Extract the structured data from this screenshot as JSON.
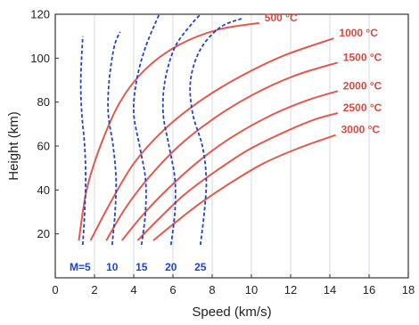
{
  "chart_data": {
    "type": "line",
    "xlabel": "Speed (km/s)",
    "ylabel": "Height (km)",
    "xlim": [
      0,
      18
    ],
    "ylim": [
      0,
      120
    ],
    "xticks": [
      "0",
      "2",
      "4",
      "6",
      "8",
      "10",
      "12",
      "14",
      "16",
      "18"
    ],
    "yticks": [
      "20",
      "40",
      "60",
      "80",
      "100",
      "120"
    ],
    "grid": "vertical",
    "temperature_series": [
      {
        "name": "500 °C",
        "color": "#e05a4e",
        "points": [
          [
            1.2,
            17
          ],
          [
            1.6,
            40
          ],
          [
            2.3,
            60
          ],
          [
            3.3,
            80
          ],
          [
            4.6,
            95
          ],
          [
            6.3,
            106
          ],
          [
            8.3,
            113
          ],
          [
            10.4,
            116
          ]
        ]
      },
      {
        "name": "1000 °C",
        "color": "#e05a4e",
        "points": [
          [
            1.8,
            17
          ],
          [
            2.8,
            34
          ],
          [
            4.0,
            52
          ],
          [
            5.5,
            67
          ],
          [
            7.3,
            80
          ],
          [
            9.3,
            91
          ],
          [
            11.6,
            101
          ],
          [
            14.2,
            109
          ]
        ]
      },
      {
        "name": "1500 °C",
        "color": "#e05a4e",
        "points": [
          [
            2.6,
            17
          ],
          [
            3.6,
            32
          ],
          [
            4.8,
            46
          ],
          [
            6.3,
            60
          ],
          [
            8.0,
            72
          ],
          [
            10.0,
            83
          ],
          [
            12.2,
            92
          ],
          [
            14.4,
            98
          ]
        ]
      },
      {
        "name": "2000 °C",
        "color": "#e05a4e",
        "points": [
          [
            3.4,
            17
          ],
          [
            4.5,
            29
          ],
          [
            5.8,
            41
          ],
          [
            7.3,
            53
          ],
          [
            9.0,
            64
          ],
          [
            11.0,
            74
          ],
          [
            12.9,
            81
          ],
          [
            14.4,
            85
          ]
        ]
      },
      {
        "name": "2500 °C",
        "color": "#e05a4e",
        "points": [
          [
            4.2,
            17
          ],
          [
            5.3,
            27
          ],
          [
            6.6,
            38
          ],
          [
            8.1,
            48
          ],
          [
            9.8,
            58
          ],
          [
            11.6,
            66
          ],
          [
            13.2,
            72
          ],
          [
            14.4,
            75
          ]
        ]
      },
      {
        "name": "3000 °C",
        "color": "#e05a4e",
        "points": [
          [
            5.0,
            17
          ],
          [
            6.1,
            25
          ],
          [
            7.4,
            34
          ],
          [
            8.9,
            43
          ],
          [
            10.6,
            52
          ],
          [
            12.4,
            59
          ],
          [
            14.3,
            65
          ]
        ]
      }
    ],
    "mach_series": [
      {
        "name": "M=5",
        "color": "#2244cc",
        "points": [
          [
            1.4,
            15
          ],
          [
            1.5,
            30
          ],
          [
            1.55,
            45
          ],
          [
            1.5,
            60
          ],
          [
            1.35,
            75
          ],
          [
            1.3,
            90
          ],
          [
            1.4,
            110
          ]
        ]
      },
      {
        "name": "10",
        "color": "#2244cc",
        "points": [
          [
            2.9,
            15
          ],
          [
            3.05,
            30
          ],
          [
            3.1,
            45
          ],
          [
            2.95,
            60
          ],
          [
            2.7,
            75
          ],
          [
            2.75,
            90
          ],
          [
            3.0,
            105
          ],
          [
            3.3,
            112
          ]
        ]
      },
      {
        "name": "15",
        "color": "#2244cc",
        "points": [
          [
            4.4,
            15
          ],
          [
            4.6,
            30
          ],
          [
            4.6,
            45
          ],
          [
            4.3,
            60
          ],
          [
            4.0,
            75
          ],
          [
            4.15,
            90
          ],
          [
            4.6,
            105
          ],
          [
            5.3,
            120
          ]
        ]
      },
      {
        "name": "20",
        "color": "#2244cc",
        "points": [
          [
            5.9,
            15
          ],
          [
            6.1,
            30
          ],
          [
            6.1,
            45
          ],
          [
            5.8,
            60
          ],
          [
            5.5,
            75
          ],
          [
            5.6,
            90
          ],
          [
            6.1,
            105
          ],
          [
            6.9,
            115
          ],
          [
            7.4,
            120
          ]
        ]
      },
      {
        "name": "25",
        "color": "#2244cc",
        "points": [
          [
            7.4,
            15
          ],
          [
            7.6,
            30
          ],
          [
            7.7,
            45
          ],
          [
            7.5,
            60
          ],
          [
            7.0,
            75
          ],
          [
            6.9,
            90
          ],
          [
            7.4,
            104
          ],
          [
            8.4,
            114
          ],
          [
            9.5,
            118
          ]
        ]
      }
    ]
  }
}
